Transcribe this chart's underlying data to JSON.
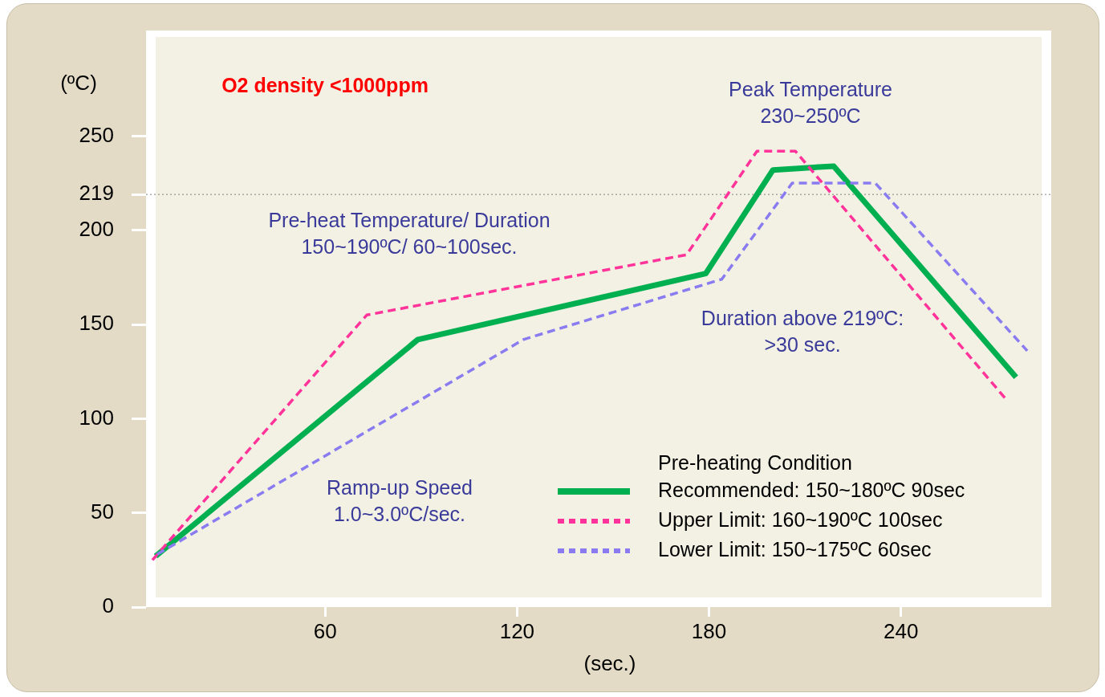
{
  "chart_data": {
    "type": "line",
    "xlabel": "(sec.)",
    "ylabel": "(ºC)",
    "legend_title": "Pre-heating Condition",
    "xlim": [
      4,
      287
    ],
    "xticks": [
      60,
      120,
      180,
      240
    ],
    "ylim": [
      0,
      306
    ],
    "yticks": [
      0,
      50,
      100,
      150,
      200,
      219,
      250
    ],
    "grid": false,
    "legend": "bottom right",
    "marker": "none",
    "ref_lines": [
      {
        "axis": "y",
        "value": 219,
        "color": "#808080",
        "line_style": "dotted"
      }
    ],
    "annotations": [
      "O2 density <1000ppm",
      "Peak Temperature\n230~250ºC",
      "Pre-heat Temperature/ Duration\n150~190ºC/ 60~100sec.",
      "Duration above 219ºC:\n>30 sec.",
      "Ramp-up Speed\n1.0~3.0ºC/sec."
    ],
    "series": [
      {
        "name": "Recommended: 150~180ºC 90sec",
        "color": "#00b050",
        "line_style": "solid",
        "x": [
          7,
          89,
          179,
          200,
          219,
          276
        ],
        "values": [
          27,
          142,
          177,
          232,
          234,
          122
        ]
      },
      {
        "name": "Upper Limit: 160~190ºC 100sec",
        "color": "#ff3399",
        "line_style": "dashed",
        "x": [
          6,
          73,
          173,
          195,
          207,
          273
        ],
        "values": [
          25,
          155,
          187,
          242,
          242,
          110
        ]
      },
      {
        "name": "Lower Limit: 150~175ºC 60sec",
        "color": "#8a7cf0",
        "line_style": "dashed",
        "x": [
          7.5,
          122,
          184,
          206,
          232,
          279.5
        ],
        "values": [
          28,
          142,
          174,
          225,
          225,
          136
        ]
      }
    ]
  }
}
